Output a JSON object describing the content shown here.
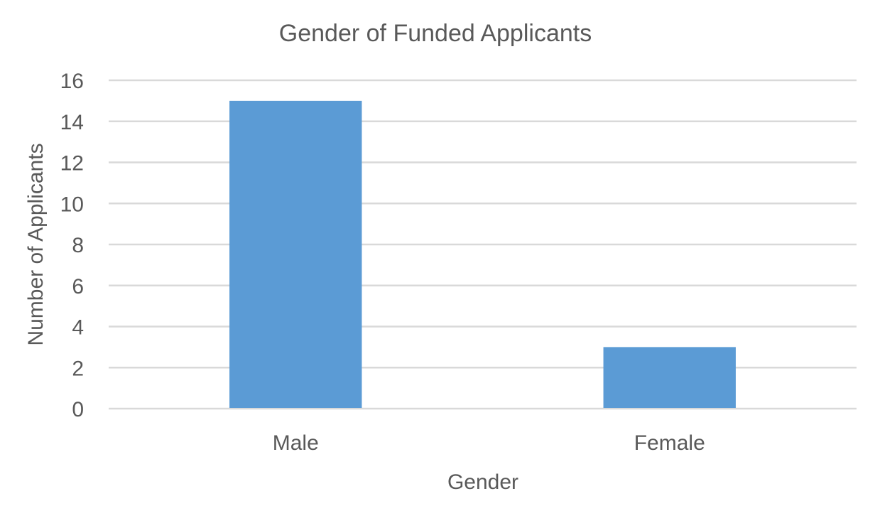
{
  "chart_data": {
    "type": "bar",
    "title": "Gender of Funded Applicants",
    "xlabel": "Gender",
    "ylabel": "Number of Applicants",
    "categories": [
      "Male",
      "Female"
    ],
    "values": [
      15,
      3
    ],
    "ylim": [
      0,
      16
    ],
    "yticks": [
      0,
      2,
      4,
      6,
      8,
      10,
      12,
      14,
      16
    ],
    "grid": true,
    "legend": "none",
    "bar_color": "#5b9bd5"
  }
}
